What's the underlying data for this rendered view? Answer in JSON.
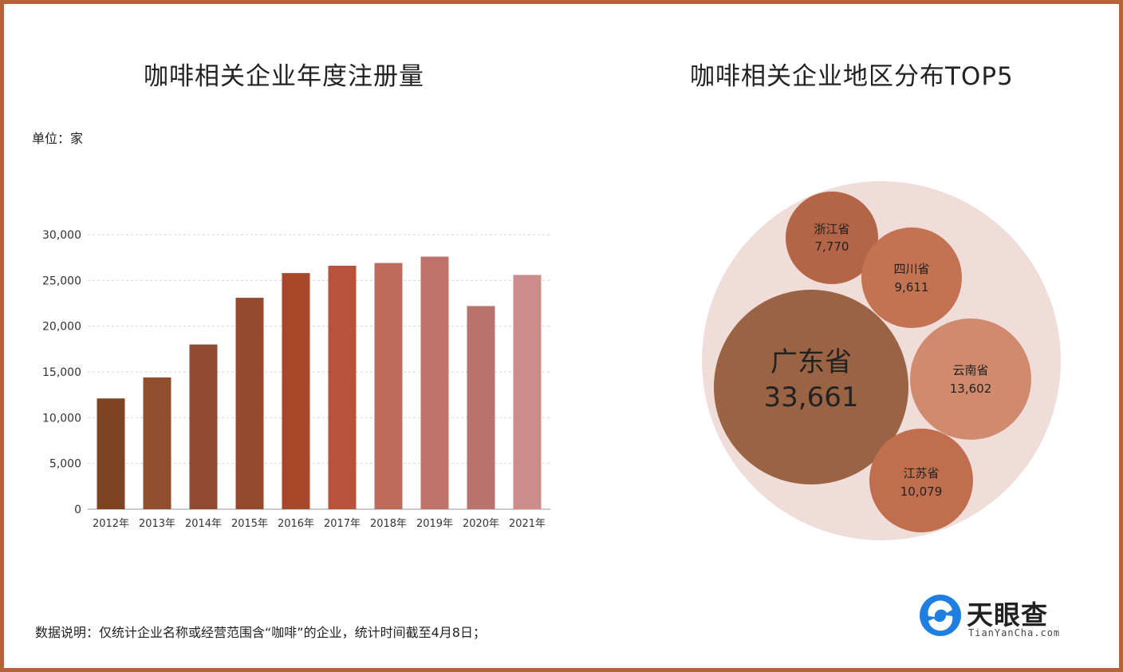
{
  "left_title": "咖啡相关企业年度注册量",
  "right_title": "咖啡相关企业地区分布TOP5",
  "unit_label": "单位：家",
  "footnote": "数据说明：仅统计企业名称或经营范围含“咖啡”的企业，统计时间截至4月8日；",
  "logo": {
    "name": "天眼查",
    "url": "TianYanCha.com"
  },
  "chart_data": [
    {
      "type": "bar",
      "title": "咖啡相关企业年度注册量",
      "ylabel": "单位：家",
      "categories": [
        "2012年",
        "2013年",
        "2014年",
        "2015年",
        "2016年",
        "2017年",
        "2018年",
        "2019年",
        "2020年",
        "2021年"
      ],
      "values": [
        12100,
        14400,
        18000,
        23100,
        25800,
        26600,
        26900,
        27600,
        22200,
        25600
      ],
      "colors": [
        "#7e4321",
        "#8f4f2f",
        "#904b30",
        "#944a2c",
        "#a8482b",
        "#b6533a",
        "#bf6b5c",
        "#c0736b",
        "#b8736c",
        "#cc8c89"
      ],
      "yticks": [
        "0",
        "5,000",
        "10,000",
        "15,000",
        "20,000",
        "25,000",
        "30,000"
      ],
      "ylim": [
        0,
        30000
      ],
      "grid": true
    },
    {
      "type": "bubble",
      "title": "咖啡相关企业地区分布TOP5",
      "items": [
        {
          "name": "广东省",
          "value": 33661,
          "label": "33,661",
          "color": "#9a6344"
        },
        {
          "name": "浙江省",
          "value": 7770,
          "label": "7,770",
          "color": "#b56547"
        },
        {
          "name": "四川省",
          "value": 9611,
          "label": "9,611",
          "color": "#c37352"
        },
        {
          "name": "云南省",
          "value": 13602,
          "label": "13,602",
          "color": "#d08a6d"
        },
        {
          "name": "江苏省",
          "value": 10079,
          "label": "10,079",
          "color": "#c06e4e"
        }
      ],
      "background_color": "#f0dcd8"
    }
  ]
}
